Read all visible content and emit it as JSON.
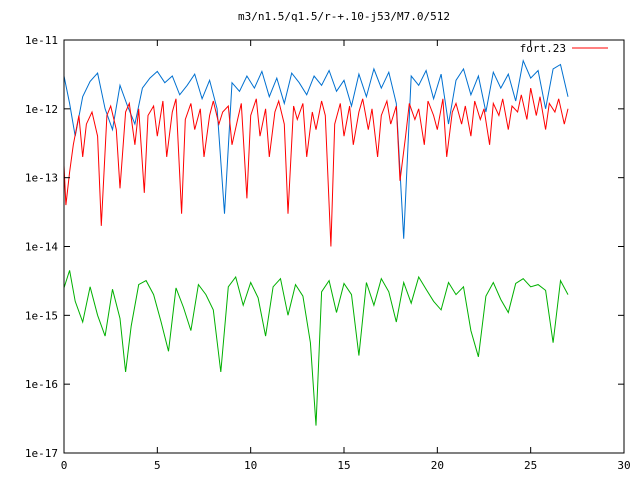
{
  "chart_data": {
    "type": "line",
    "title": "m3/n1.5/q1.5/r-+.10-j53/M7.0/512",
    "xlabel": "",
    "ylabel": "",
    "xlim": [
      0,
      30
    ],
    "ylim": [
      1e-17,
      1e-11
    ],
    "yscale": "log",
    "grid": false,
    "legend_position": "top-right",
    "x_ticks": [
      0,
      5,
      10,
      15,
      20,
      25,
      30
    ],
    "x_tick_labels": [
      "0",
      "5",
      "10",
      "15",
      "20",
      "25",
      "30"
    ],
    "y_ticks": [
      1e-11,
      1e-12,
      1e-13,
      1e-14,
      1e-15,
      1e-16,
      1e-17
    ],
    "y_tick_labels": [
      "1e-11",
      "1e-12",
      "1e-13",
      "1e-14",
      "1e-15",
      "1e-16",
      "1e-17"
    ],
    "series": [
      {
        "name": "fort.23",
        "color": "#ff0000",
        "in_legend": true,
        "x": [
          0,
          0.1,
          0.3,
          0.5,
          0.8,
          1.0,
          1.2,
          1.5,
          1.8,
          2.0,
          2.3,
          2.5,
          2.8,
          3.0,
          3.3,
          3.5,
          3.8,
          4.0,
          4.3,
          4.5,
          4.8,
          5.0,
          5.3,
          5.5,
          5.8,
          6.0,
          6.3,
          6.5,
          6.8,
          7.0,
          7.3,
          7.5,
          7.8,
          8.0,
          8.3,
          8.5,
          8.8,
          9.0,
          9.3,
          9.5,
          9.8,
          10.0,
          10.3,
          10.5,
          10.8,
          11.0,
          11.3,
          11.5,
          11.8,
          12.0,
          12.3,
          12.5,
          12.8,
          13.0,
          13.3,
          13.5,
          13.8,
          14.0,
          14.3,
          14.5,
          14.8,
          15.0,
          15.3,
          15.5,
          15.8,
          16.0,
          16.3,
          16.5,
          16.8,
          17.0,
          17.3,
          17.5,
          17.8,
          18.0,
          18.3,
          18.5,
          18.8,
          19.0,
          19.3,
          19.5,
          19.8,
          20.0,
          20.3,
          20.5,
          20.8,
          21.0,
          21.3,
          21.5,
          21.8,
          22.0,
          22.3,
          22.5,
          22.8,
          23.0,
          23.3,
          23.5,
          23.8,
          24.0,
          24.3,
          24.5,
          24.8,
          25.0,
          25.3,
          25.5,
          25.8,
          26.0,
          26.3,
          26.5,
          26.8,
          27.0
        ],
        "y": [
          1.5e-13,
          4e-14,
          1.2e-13,
          3e-13,
          8e-13,
          2e-13,
          6e-13,
          9e-13,
          4e-13,
          2e-14,
          8e-13,
          1.1e-12,
          5e-13,
          7e-14,
          9e-13,
          1.2e-12,
          3e-13,
          1e-12,
          6e-14,
          8e-13,
          1.1e-12,
          4e-13,
          1.3e-12,
          2e-13,
          9e-13,
          1.4e-12,
          3e-14,
          7e-13,
          1.2e-12,
          5e-13,
          1e-12,
          2e-13,
          8e-13,
          1.3e-12,
          6e-13,
          9e-13,
          1.1e-12,
          3e-13,
          7e-13,
          1.2e-12,
          5e-14,
          8e-13,
          1.4e-12,
          4e-13,
          1e-12,
          2e-13,
          9e-13,
          1.3e-12,
          6e-13,
          3e-14,
          1.1e-12,
          7e-13,
          1.2e-12,
          2e-13,
          9e-13,
          5e-13,
          1.3e-12,
          8e-13,
          1e-14,
          6e-13,
          1.2e-12,
          4e-13,
          1.1e-12,
          3e-13,
          9e-13,
          1.4e-12,
          5e-13,
          1e-12,
          2e-13,
          8e-13,
          1.3e-12,
          6e-13,
          1.1e-12,
          9e-14,
          4e-13,
          1.2e-12,
          7e-13,
          1e-12,
          3e-13,
          1.3e-12,
          8e-13,
          5e-13,
          1.4e-12,
          2e-13,
          9e-13,
          1.2e-12,
          6e-13,
          1.1e-12,
          4e-13,
          1.3e-12,
          7e-13,
          1e-12,
          3e-13,
          1.2e-12,
          8e-13,
          1.4e-12,
          5e-13,
          1.1e-12,
          9e-13,
          1.6e-12,
          7e-13,
          2e-12,
          8e-13,
          1.5e-12,
          5e-13,
          1.2e-12,
          9e-13,
          1.4e-12,
          6e-13,
          1e-12
        ]
      },
      {
        "name": "",
        "color": "#0070d0",
        "in_legend": false,
        "x": [
          0,
          0.3,
          0.6,
          1.0,
          1.4,
          1.8,
          2.2,
          2.6,
          3.0,
          3.4,
          3.8,
          4.2,
          4.6,
          5.0,
          5.4,
          5.8,
          6.2,
          6.6,
          7.0,
          7.4,
          7.8,
          8.2,
          8.6,
          9.0,
          9.4,
          9.8,
          10.2,
          10.6,
          11.0,
          11.4,
          11.8,
          12.2,
          12.6,
          13.0,
          13.4,
          13.8,
          14.2,
          14.6,
          15.0,
          15.4,
          15.8,
          16.2,
          16.6,
          17.0,
          17.4,
          17.8,
          18.2,
          18.6,
          19.0,
          19.4,
          19.8,
          20.2,
          20.6,
          21.0,
          21.4,
          21.8,
          22.2,
          22.6,
          23.0,
          23.4,
          23.8,
          24.2,
          24.6,
          25.0,
          25.4,
          25.8,
          26.2,
          26.6,
          27.0
        ],
        "y": [
          3e-12,
          1.2e-12,
          4e-13,
          1.5e-12,
          2.5e-12,
          3.3e-12,
          1e-12,
          5e-13,
          2.2e-12,
          1.1e-12,
          6e-13,
          2e-12,
          2.8e-12,
          3.5e-12,
          2.4e-12,
          3e-12,
          1.6e-12,
          2.2e-12,
          3.2e-12,
          1.4e-12,
          2.6e-12,
          1e-12,
          3e-14,
          2.4e-12,
          1.8e-12,
          3e-12,
          2e-12,
          3.5e-12,
          1.5e-12,
          2.8e-12,
          1.2e-12,
          3.3e-12,
          2.4e-12,
          1.6e-12,
          3e-12,
          2.2e-12,
          3.6e-12,
          1.8e-12,
          2.6e-12,
          1.1e-12,
          3.2e-12,
          1.5e-12,
          3.8e-12,
          2e-12,
          3.4e-12,
          1.2e-12,
          1.3e-14,
          3e-12,
          2.2e-12,
          3.6e-12,
          1.4e-12,
          3.2e-12,
          6e-13,
          2.6e-12,
          3.8e-12,
          1.6e-12,
          3e-12,
          9e-13,
          3.4e-12,
          2e-12,
          3.2e-12,
          1.3e-12,
          5e-12,
          2.8e-12,
          3.6e-12,
          1e-12,
          3.8e-12,
          4.4e-12,
          1.5e-12
        ]
      },
      {
        "name": "",
        "color": "#00b000",
        "in_legend": false,
        "x": [
          0,
          0.3,
          0.6,
          1.0,
          1.4,
          1.8,
          2.2,
          2.6,
          3.0,
          3.3,
          3.6,
          4.0,
          4.4,
          4.8,
          5.2,
          5.6,
          6.0,
          6.4,
          6.8,
          7.2,
          7.6,
          8.0,
          8.4,
          8.8,
          9.2,
          9.6,
          10.0,
          10.4,
          10.8,
          11.2,
          11.6,
          12.0,
          12.4,
          12.8,
          13.2,
          13.5,
          13.8,
          14.2,
          14.6,
          15.0,
          15.4,
          15.8,
          16.2,
          16.6,
          17.0,
          17.4,
          17.8,
          18.2,
          18.6,
          19.0,
          19.4,
          19.8,
          20.2,
          20.6,
          21.0,
          21.4,
          21.8,
          22.2,
          22.6,
          23.0,
          23.4,
          23.8,
          24.2,
          24.6,
          25.0,
          25.4,
          25.8,
          26.2,
          26.6,
          27.0
        ],
        "y": [
          2.5e-15,
          4.5e-15,
          1.6e-15,
          8e-16,
          2.6e-15,
          1e-15,
          5e-16,
          2.4e-15,
          9e-16,
          1.5e-16,
          7e-16,
          2.8e-15,
          3.2e-15,
          2e-15,
          8e-16,
          3e-16,
          2.5e-15,
          1.3e-15,
          6e-16,
          2.8e-15,
          2e-15,
          1.2e-15,
          1.5e-16,
          2.6e-15,
          3.6e-15,
          1.4e-15,
          3e-15,
          1.8e-15,
          5e-16,
          2.6e-15,
          3.4e-15,
          1e-15,
          2.8e-15,
          1.9e-15,
          4e-16,
          2.5e-17,
          2.2e-15,
          3.2e-15,
          1.1e-15,
          2.9e-15,
          2e-15,
          2.6e-16,
          3e-15,
          1.4e-15,
          3.4e-15,
          2.2e-15,
          8e-16,
          3e-15,
          1.5e-15,
          3.6e-15,
          2.4e-15,
          1.6e-15,
          1.2e-15,
          3e-15,
          2e-15,
          2.6e-15,
          6e-16,
          2.5e-16,
          1.9e-15,
          3e-15,
          1.7e-15,
          1.1e-15,
          2.9e-15,
          3.4e-15,
          2.6e-15,
          2.8e-15,
          2.3e-15,
          4e-16,
          3.2e-15,
          2e-15
        ]
      }
    ]
  }
}
